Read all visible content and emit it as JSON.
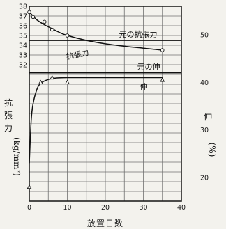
{
  "chart_data": {
    "type": "line",
    "xlabel": "放置日数",
    "ylabel_left": "抗張力",
    "ylabel_left_unit": "(kg/mm²)",
    "ylabel_right": "伸",
    "ylabel_right_unit": "(%)",
    "xlim": [
      0,
      40
    ],
    "ylim_left": [
      18,
      38
    ],
    "ylim_right": [
      15,
      56
    ],
    "x_ticks": [
      0,
      10,
      20,
      30,
      40
    ],
    "y_left_ticks": [
      32,
      33,
      34,
      35,
      36,
      37,
      38
    ],
    "y_right_ticks": [
      20,
      30,
      40,
      50
    ],
    "grid": true,
    "series": [
      {
        "name": "抗張力",
        "axis": "left",
        "marker": "circle",
        "points": [
          [
            0,
            37.4
          ],
          [
            1,
            36.9
          ],
          [
            4,
            36.4
          ],
          [
            6,
            35.6
          ],
          [
            10,
            35.0
          ],
          [
            35,
            33.5
          ]
        ],
        "curve": [
          [
            0,
            37.4
          ],
          [
            1,
            37.0
          ],
          [
            2,
            36.6
          ],
          [
            4,
            36.1
          ],
          [
            6,
            35.7
          ],
          [
            8,
            35.3
          ],
          [
            10,
            35.0
          ],
          [
            15,
            34.5
          ],
          [
            20,
            34.15
          ],
          [
            25,
            33.9
          ],
          [
            30,
            33.7
          ],
          [
            35,
            33.5
          ]
        ]
      },
      {
        "name": "伸",
        "axis": "right",
        "marker": "triangle",
        "points": [
          [
            0,
            18
          ],
          [
            3,
            40
          ],
          [
            6,
            41
          ],
          [
            10,
            40
          ],
          [
            35,
            40.5
          ]
        ],
        "curve": [
          [
            0,
            23
          ],
          [
            0.5,
            32
          ],
          [
            1,
            35.5
          ],
          [
            2,
            38.5
          ],
          [
            3,
            39.8
          ],
          [
            5,
            40.6
          ],
          [
            7,
            40.9
          ],
          [
            10,
            41
          ],
          [
            20,
            41
          ],
          [
            35,
            41
          ]
        ]
      }
    ],
    "reference_lines": [
      {
        "name": "元の抗張力",
        "axis": "left",
        "value": 34.5
      },
      {
        "name": "元の伸",
        "axis": "right",
        "value": 42
      }
    ]
  }
}
